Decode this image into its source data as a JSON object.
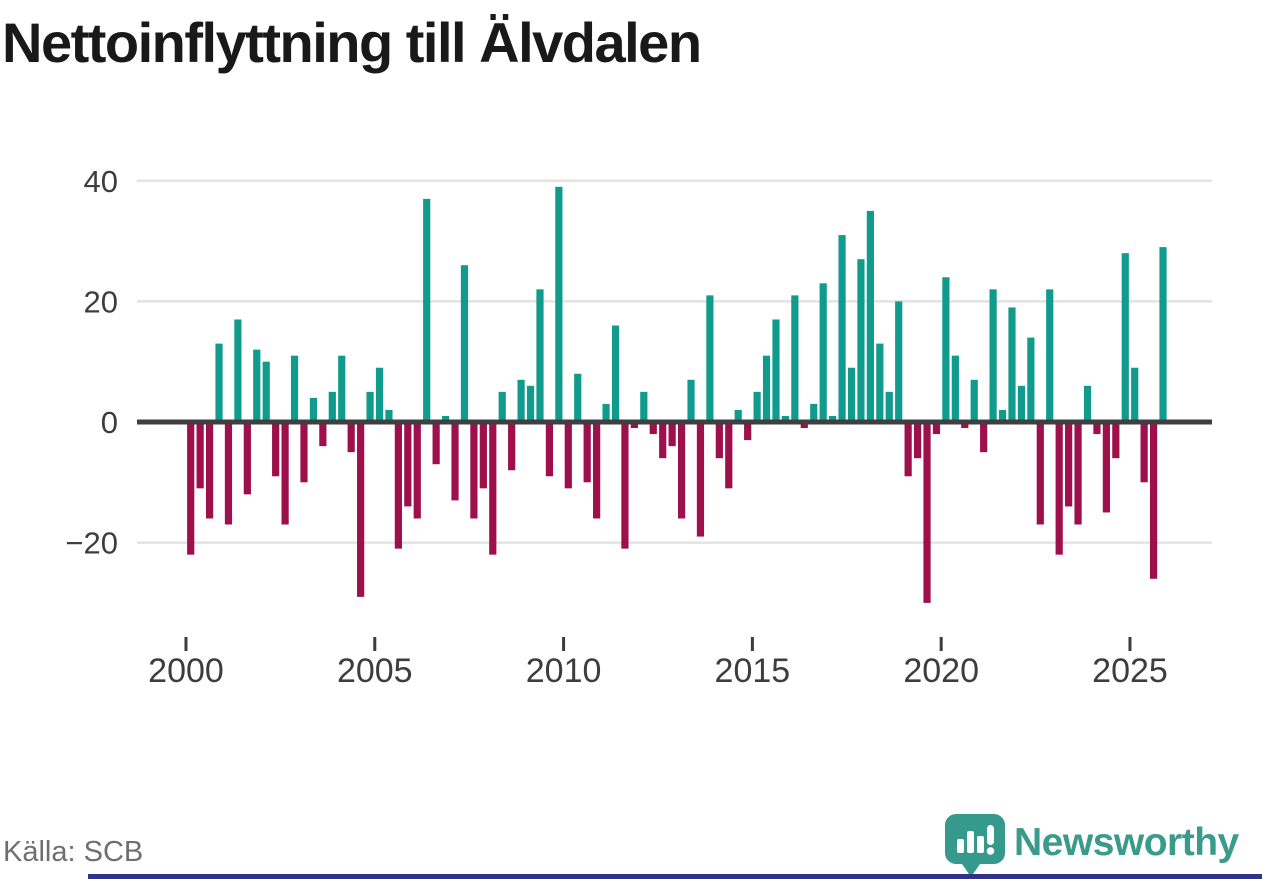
{
  "title": "Nettoinflyttning till Älvdalen",
  "source_label": "Källa: SCB",
  "branding": {
    "name": "Newsworthy",
    "icon": "bar-chart-speech-bubble"
  },
  "colors": {
    "positive_bar": "#119b8d",
    "negative_bar": "#9e104c",
    "axis_line": "#3f3f3f",
    "gridline": "#e3e3e3",
    "tick_text": "#3d3d3d",
    "title_text": "#191919",
    "source_text": "#6f6f6f",
    "brand_teal": "#3a9a8b",
    "footer_line": "#32338e"
  },
  "chart_data": {
    "type": "bar",
    "title": "Nettoinflyttning till Älvdalen",
    "frequency": "quarterly",
    "x_start": "2000 Q1",
    "x_end": "2025 Q4",
    "x_tick_labels": [
      "2000",
      "2005",
      "2010",
      "2015",
      "2020",
      "2025"
    ],
    "y_ticks": [
      40,
      20,
      0,
      -20
    ],
    "ylim": [
      -33,
      45
    ],
    "grid": "horizontal",
    "legend_position": "none",
    "series": [
      {
        "name": "Nettoinflyttning",
        "values": [
          -22,
          -11,
          -16,
          13,
          -17,
          17,
          -12,
          12,
          10,
          -9,
          -17,
          11,
          -10,
          4,
          -4,
          5,
          11,
          -5,
          -29,
          5,
          9,
          2,
          -21,
          -14,
          -16,
          37,
          -7,
          1,
          -13,
          26,
          -16,
          -11,
          -22,
          5,
          -8,
          7,
          6,
          22,
          -9,
          39,
          -11,
          8,
          -10,
          -16,
          3,
          16,
          -21,
          -1,
          5,
          -2,
          -6,
          -4,
          -16,
          7,
          -19,
          21,
          -6,
          -11,
          2,
          -3,
          5,
          11,
          17,
          1,
          21,
          -1,
          3,
          23,
          1,
          31,
          9,
          27,
          35,
          13,
          5,
          20,
          -9,
          -6,
          -30,
          -2,
          24,
          11,
          -1,
          7,
          -5,
          22,
          2,
          19,
          6,
          14,
          -17,
          22,
          -22,
          -14,
          -17,
          6,
          -2,
          -15,
          -6,
          28,
          9,
          -10,
          -26,
          29
        ]
      }
    ]
  }
}
